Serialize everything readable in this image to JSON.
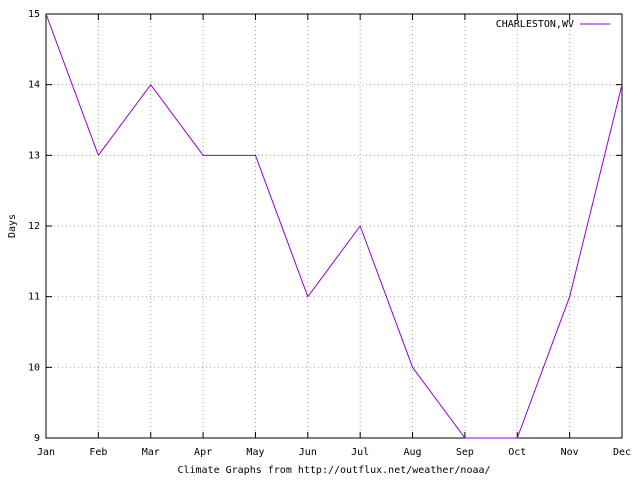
{
  "chart_data": {
    "type": "line",
    "categories": [
      "Jan",
      "Feb",
      "Mar",
      "Apr",
      "May",
      "Jun",
      "Jul",
      "Aug",
      "Sep",
      "Oct",
      "Nov",
      "Dec"
    ],
    "series": [
      {
        "name": "CHARLESTON,WV",
        "color": "#9400d3",
        "values": [
          15,
          13,
          14,
          13,
          13,
          11,
          12,
          10,
          9,
          9,
          11,
          14
        ]
      }
    ],
    "ylim": [
      9,
      15
    ],
    "yticks": [
      9,
      10,
      11,
      12,
      13,
      14,
      15
    ],
    "y_label": "Days",
    "x_label": "Climate Graphs from http://outflux.net/weather/noaa/",
    "grid": true,
    "legend": "top-right"
  }
}
